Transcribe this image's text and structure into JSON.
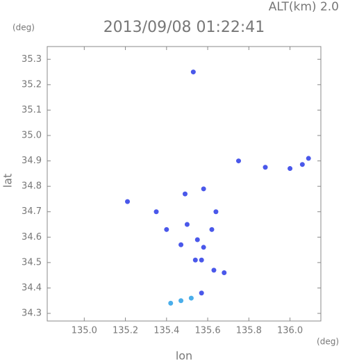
{
  "chart_data": {
    "type": "scatter",
    "title": "2013/09/08 01:22:41",
    "subtitle": "ALT(km) 2.0",
    "y_unit": "(deg)",
    "x_unit": "(deg)",
    "x_label": "lon",
    "y_label": "lat",
    "xlim": [
      134.82,
      136.15
    ],
    "ylim": [
      34.27,
      35.35
    ],
    "xticks": [
      {
        "value": 135,
        "label": "135.0"
      },
      135.2,
      135.4,
      135.6,
      135.8,
      {
        "value": 136,
        "label": "136.0"
      }
    ],
    "yticks": [
      34.3,
      34.4,
      34.5,
      34.6,
      34.7,
      34.8,
      34.9,
      {
        "value": 35,
        "label": "35.0"
      },
      35.1,
      35.2,
      35.3
    ],
    "grid": false,
    "series": [
      {
        "color": "#4a58ea",
        "x": [
          135.53,
          136.06,
          135.75,
          135.88,
          136.0,
          136.09,
          135.49,
          135.58,
          135.35,
          135.21,
          135.64,
          135.5,
          135.4,
          135.55,
          135.58,
          135.54,
          135.57,
          135.68,
          135.63,
          135.57,
          135.62,
          135.47
        ],
        "values": [
          35.25,
          34.886,
          34.9,
          34.875,
          34.87,
          34.91,
          34.77,
          34.79,
          34.7,
          34.74,
          34.7,
          34.65,
          34.63,
          34.59,
          34.56,
          34.51,
          34.51,
          34.46,
          34.47,
          34.38,
          34.63,
          34.57
        ]
      },
      {
        "color": "#4aaeea",
        "x": [
          135.42,
          135.47,
          135.52
        ],
        "values": [
          34.34,
          34.35,
          34.36
        ]
      }
    ]
  }
}
